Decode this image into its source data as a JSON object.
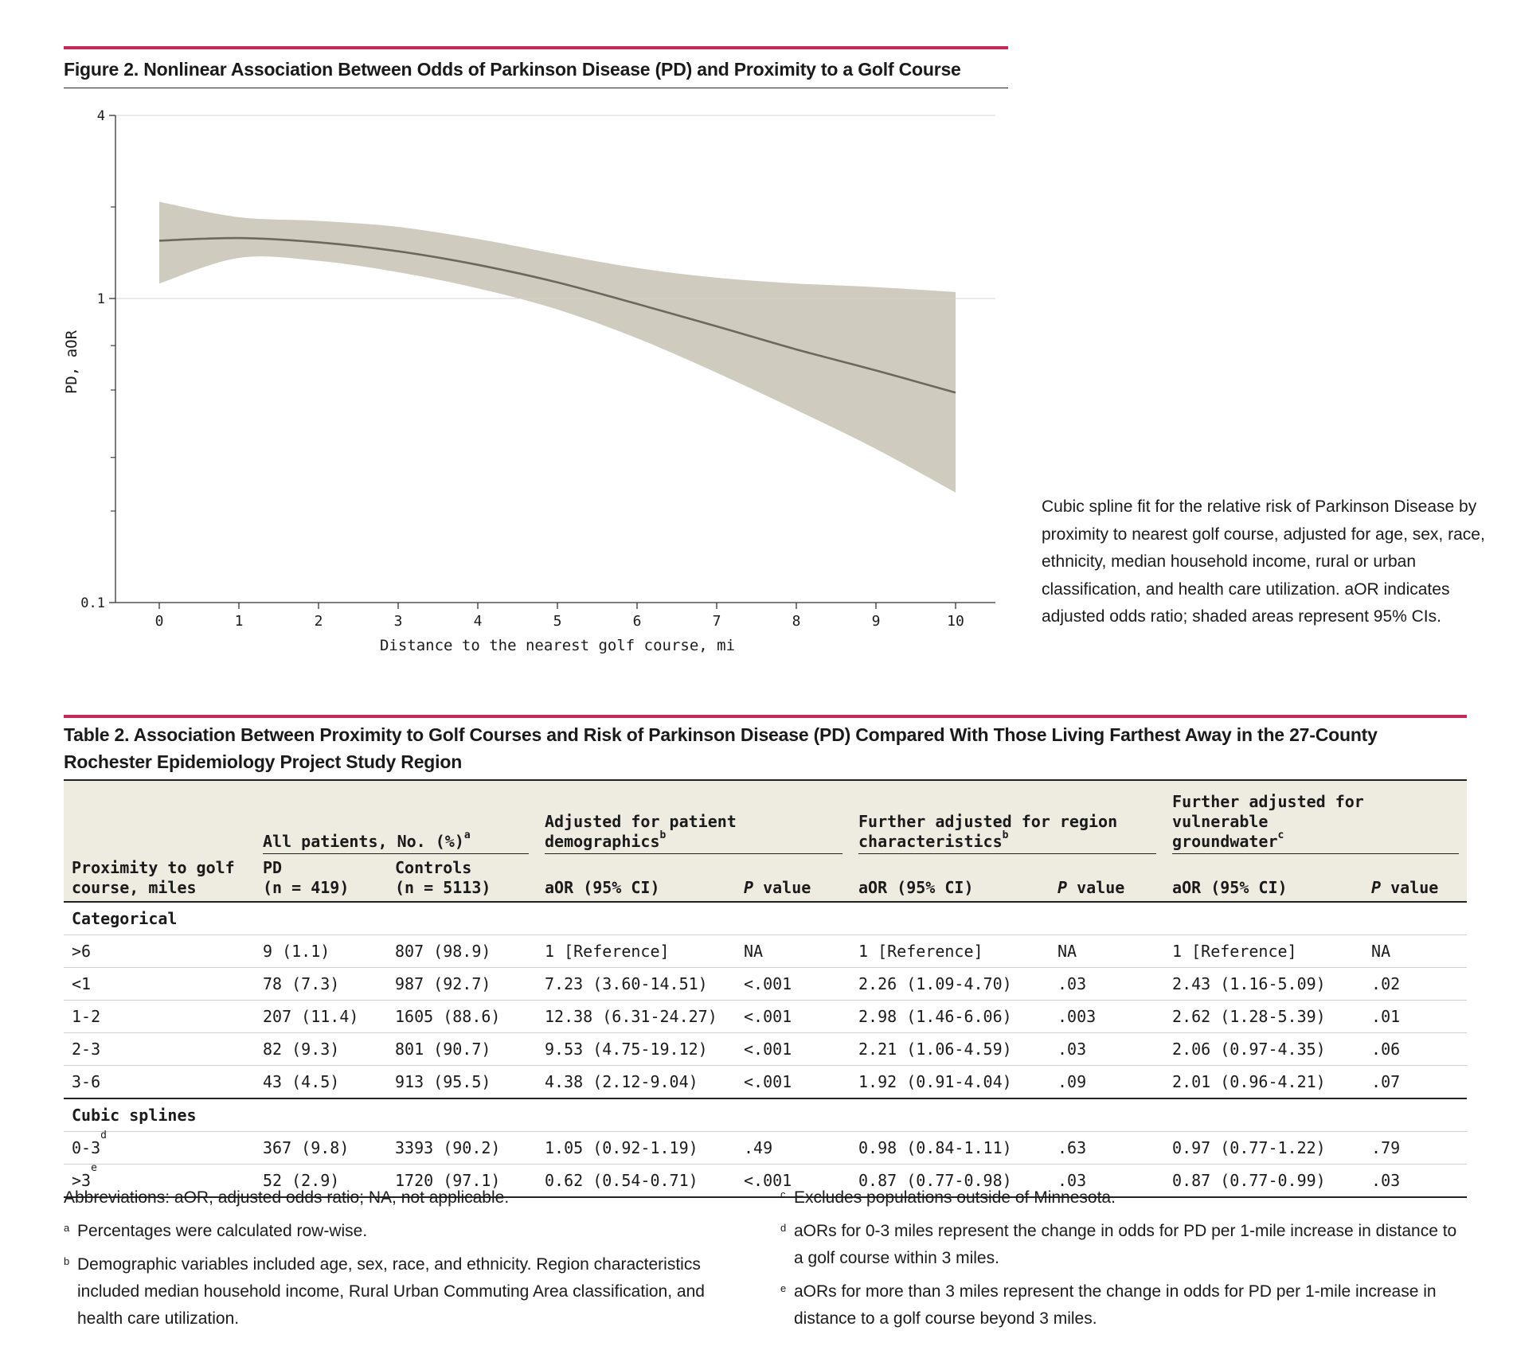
{
  "figure": {
    "title": "Figure 2. Nonlinear Association Between Odds of Parkinson Disease (PD) and Proximity to a Golf Course",
    "caption": "Cubic spline fit for the relative risk of Parkinson Disease by proximity to nearest golf course, adjusted for age, sex, race, ethnicity, median household income, rural or urban classification, and health care utilization. aOR indicates adjusted odds ratio; shaded areas represent 95% CIs."
  },
  "chart_data": {
    "type": "line",
    "title": "Figure 2. Nonlinear Association Between Odds of Parkinson Disease (PD) and Proximity to a Golf Course",
    "xlabel": "Distance to the nearest golf course, mi",
    "ylabel": "PD, aOR",
    "y_scale": "log",
    "xlim": [
      -0.55,
      10.5
    ],
    "ylim": [
      0.1,
      4
    ],
    "x_ticks": [
      0,
      1,
      2,
      3,
      4,
      5,
      6,
      7,
      8,
      9,
      10
    ],
    "y_ticks": [
      {
        "value": 0.1,
        "label": "0.1"
      },
      {
        "value": 1,
        "label": "1"
      },
      {
        "value": 4,
        "label": "4"
      }
    ],
    "y_minor_ticks": [
      0.2,
      0.3,
      0.5,
      0.7,
      2
    ],
    "reference_line": 1,
    "series": [
      {
        "name": "aOR",
        "x": [
          0,
          1,
          2,
          3,
          4,
          5,
          6,
          7,
          8,
          9,
          10
        ],
        "y": [
          1.55,
          1.58,
          1.53,
          1.43,
          1.29,
          1.13,
          0.96,
          0.81,
          0.68,
          0.58,
          0.49
        ]
      },
      {
        "name": "95% CI",
        "x": [
          0,
          1,
          2,
          3,
          4,
          5,
          6,
          7,
          8,
          9,
          10
        ],
        "lower": [
          1.12,
          1.36,
          1.33,
          1.22,
          1.08,
          0.92,
          0.74,
          0.57,
          0.43,
          0.32,
          0.23
        ],
        "upper": [
          2.08,
          1.85,
          1.8,
          1.72,
          1.57,
          1.4,
          1.26,
          1.17,
          1.12,
          1.09,
          1.05
        ]
      }
    ]
  },
  "table": {
    "title": "Table 2. Association Between Proximity to Golf Courses and Risk of Parkinson Disease (PD) Compared With Those Living Farthest Away in the 27-County Rochester Epidemiology Project Study Region",
    "group_headers": {
      "all_patients": "All patients, No. (%)",
      "all_patients_sup": "a",
      "demographics": "Adjusted for patient demographics",
      "demographics_sup": "b",
      "region_line1": "Further adjusted for region",
      "region_line2": "characteristics",
      "region_sup": "b",
      "groundwater_line1": "Further adjusted for vulnerable",
      "groundwater_line2": "groundwater",
      "groundwater_sup": "c"
    },
    "col_headers": {
      "proximity_line1": "Proximity to golf",
      "proximity_line2": "course, miles",
      "pd_line1": "PD",
      "pd_line2": "(n = 419)",
      "controls_line1": "Controls",
      "controls_line2": "(n = 5113)",
      "aor": "aOR (95% CI)",
      "p_italic": "P",
      "p_rest": " value"
    },
    "sections": [
      {
        "label": "Categorical",
        "rows": [
          {
            "prox": ">6",
            "sup": "",
            "pd": "9 (1.1)",
            "ctrl": "807 (98.9)",
            "aor1": "1 [Reference]",
            "p1": "NA",
            "aor2": "1 [Reference]",
            "p2": "NA",
            "aor3": "1 [Reference]",
            "p3": "NA"
          },
          {
            "prox": "<1",
            "sup": "",
            "pd": "78 (7.3)",
            "ctrl": "987 (92.7)",
            "aor1": "7.23 (3.60-14.51)",
            "p1": "<.001",
            "aor2": "2.26 (1.09-4.70)",
            "p2": ".03",
            "aor3": "2.43 (1.16-5.09)",
            "p3": ".02"
          },
          {
            "prox": "1-2",
            "sup": "",
            "pd": "207 (11.4)",
            "ctrl": "1605 (88.6)",
            "aor1": "12.38 (6.31-24.27)",
            "p1": "<.001",
            "aor2": "2.98 (1.46-6.06)",
            "p2": ".003",
            "aor3": "2.62 (1.28-5.39)",
            "p3": ".01"
          },
          {
            "prox": "2-3",
            "sup": "",
            "pd": "82 (9.3)",
            "ctrl": "801 (90.7)",
            "aor1": "9.53 (4.75-19.12)",
            "p1": "<.001",
            "aor2": "2.21 (1.06-4.59)",
            "p2": ".03",
            "aor3": "2.06 (0.97-4.35)",
            "p3": ".06"
          },
          {
            "prox": "3-6",
            "sup": "",
            "pd": "43 (4.5)",
            "ctrl": "913 (95.5)",
            "aor1": "4.38 (2.12-9.04)",
            "p1": "<.001",
            "aor2": "1.92 (0.91-4.04)",
            "p2": ".09",
            "aor3": "2.01 (0.96-4.21)",
            "p3": ".07"
          }
        ]
      },
      {
        "label": "Cubic splines",
        "rows": [
          {
            "prox": "0-3",
            "sup": "d",
            "pd": "367 (9.8)",
            "ctrl": "3393 (90.2)",
            "aor1": "1.05 (0.92-1.19)",
            "p1": ".49",
            "aor2": "0.98 (0.84-1.11)",
            "p2": ".63",
            "aor3": "0.97 (0.77-1.22)",
            "p3": ".79"
          },
          {
            "prox": ">3",
            "sup": "e",
            "pd": "52 (2.9)",
            "ctrl": "1720 (97.1)",
            "aor1": "0.62 (0.54-0.71)",
            "p1": "<.001",
            "aor2": "0.87 (0.77-0.98)",
            "p2": ".03",
            "aor3": "0.87 (0.77-0.99)",
            "p3": ".03"
          }
        ]
      }
    ]
  },
  "notes": {
    "abbreviations": "Abbreviations: aOR, adjusted odds ratio; NA, not applicable.",
    "a_mark": "a",
    "a": "Percentages were calculated row-wise.",
    "b_mark": "b",
    "b": "Demographic variables included age, sex, race, and ethnicity. Region characteristics included median household income, Rural Urban Commuting Area classification, and health care utilization.",
    "c_mark": "c",
    "c": "Excludes populations outside of Minnesota.",
    "d_mark": "d",
    "d": "aORs for 0-3 miles represent the change in odds for PD per 1-mile increase in distance to a golf course within 3 miles.",
    "e_mark": "e",
    "e": "aORs for more than 3 miles represent the change in odds for PD per 1-mile increase in distance to a golf course beyond 3 miles."
  }
}
